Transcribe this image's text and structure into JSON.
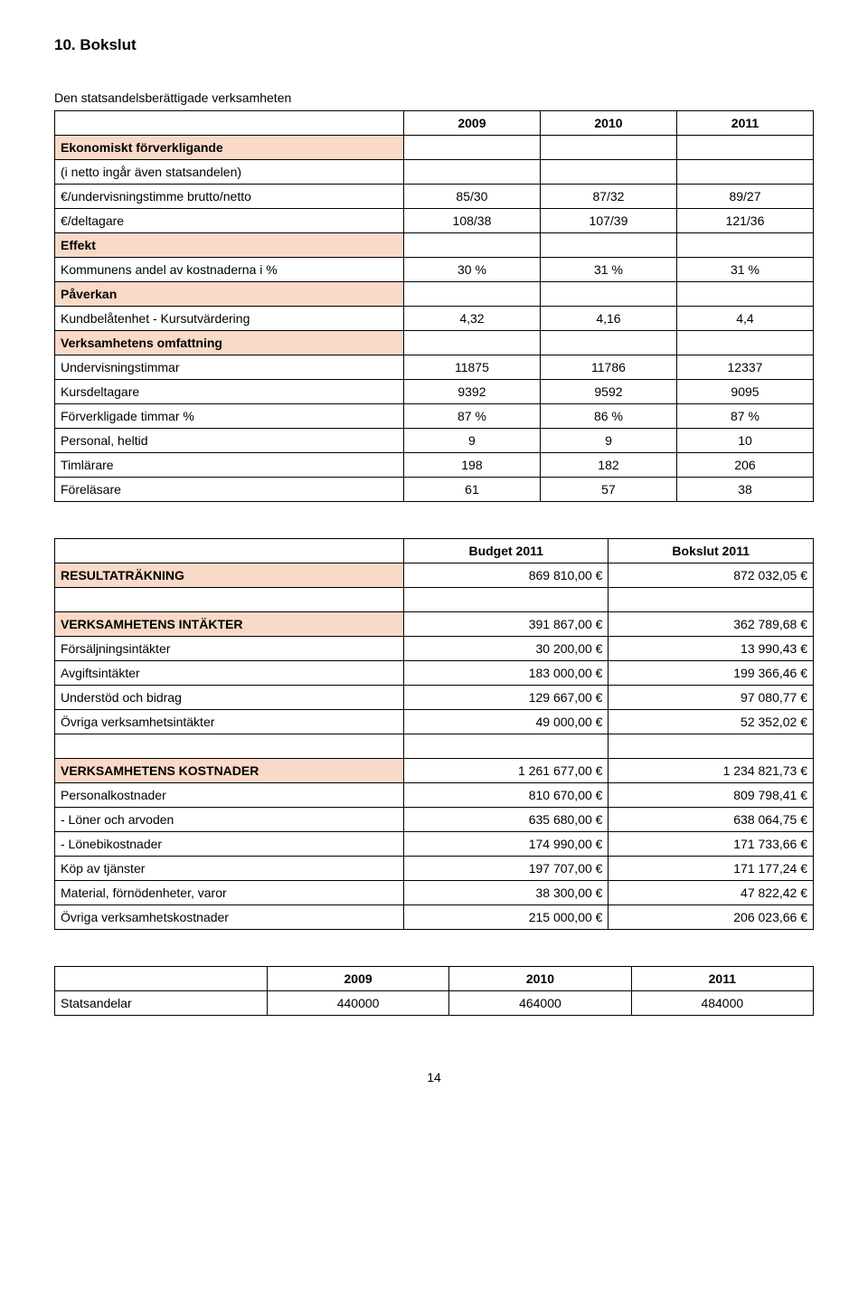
{
  "heading": "10. Bokslut",
  "intro": "Den statsandelsberättigade verksamheten",
  "table1": {
    "years": [
      "2009",
      "2010",
      "2011"
    ],
    "rows": [
      {
        "label": "Ekonomiskt förverkligande",
        "vals": [
          "",
          "",
          ""
        ],
        "bold": true,
        "shade": true
      },
      {
        "label": " (i netto ingår även statsandelen)",
        "vals": [
          "",
          "",
          ""
        ],
        "bold": false,
        "shade": false
      },
      {
        "label": "€/undervisningstimme brutto/netto",
        "vals": [
          "85/30",
          "87/32",
          "89/27"
        ],
        "bold": false,
        "shade": false
      },
      {
        "label": "€/deltagare",
        "vals": [
          "108/38",
          "107/39",
          "121/36"
        ],
        "bold": false,
        "shade": false
      },
      {
        "label": "Effekt",
        "vals": [
          "",
          "",
          ""
        ],
        "bold": true,
        "shade": true
      },
      {
        "label": "Kommunens andel av kostnaderna i %",
        "vals": [
          "30 %",
          "31 %",
          "31 %"
        ],
        "bold": false,
        "shade": false
      },
      {
        "label": "Påverkan",
        "vals": [
          "",
          "",
          ""
        ],
        "bold": true,
        "shade": true
      },
      {
        "label": "Kundbelåtenhet - Kursutvärdering",
        "vals": [
          "4,32",
          "4,16",
          "4,4"
        ],
        "bold": false,
        "shade": false
      },
      {
        "label": "Verksamhetens omfattning",
        "vals": [
          "",
          "",
          ""
        ],
        "bold": true,
        "shade": true
      },
      {
        "label": "Undervisningstimmar",
        "vals": [
          "11875",
          "11786",
          "12337"
        ],
        "bold": false,
        "shade": false
      },
      {
        "label": "Kursdeltagare",
        "vals": [
          "9392",
          "9592",
          "9095"
        ],
        "bold": false,
        "shade": false
      },
      {
        "label": "Förverkligade timmar %",
        "vals": [
          "87 %",
          "86 %",
          "87 %"
        ],
        "bold": false,
        "shade": false
      },
      {
        "label": "Personal, heltid",
        "vals": [
          "9",
          "9",
          "10"
        ],
        "bold": false,
        "shade": false
      },
      {
        "label": "Timlärare",
        "vals": [
          "198",
          "182",
          "206"
        ],
        "bold": false,
        "shade": false
      },
      {
        "label": "Föreläsare",
        "vals": [
          "61",
          "57",
          "38"
        ],
        "bold": false,
        "shade": false
      }
    ]
  },
  "table2": {
    "head": [
      "Budget 2011",
      "Bokslut 2011"
    ],
    "rows": [
      {
        "label": "RESULTATRÄKNING",
        "vals": [
          "869 810,00 €",
          "872 032,05 €"
        ],
        "bold": true,
        "shade": true
      },
      {
        "label": "",
        "vals": [
          "",
          ""
        ],
        "bold": false,
        "shade": false
      },
      {
        "label": "VERKSAMHETENS INTÄKTER",
        "vals": [
          "391 867,00 €",
          "362 789,68 €"
        ],
        "bold": true,
        "shade": true
      },
      {
        "label": "Försäljningsintäkter",
        "vals": [
          "30 200,00 €",
          "13 990,43 €"
        ],
        "bold": false,
        "shade": false
      },
      {
        "label": "Avgiftsintäkter",
        "vals": [
          "183 000,00 €",
          "199 366,46 €"
        ],
        "bold": false,
        "shade": false
      },
      {
        "label": "Understöd och bidrag",
        "vals": [
          "129 667,00 €",
          "97 080,77 €"
        ],
        "bold": false,
        "shade": false
      },
      {
        "label": "Övriga verksamhetsintäkter",
        "vals": [
          "49 000,00 €",
          "52 352,02 €"
        ],
        "bold": false,
        "shade": false
      },
      {
        "label": "",
        "vals": [
          "",
          ""
        ],
        "bold": false,
        "shade": false
      },
      {
        "label": "VERKSAMHETENS KOSTNADER",
        "vals": [
          "1 261 677,00 €",
          "1 234 821,73 €"
        ],
        "bold": true,
        "shade": true
      },
      {
        "label": "Personalkostnader",
        "vals": [
          "810 670,00 €",
          "809 798,41 €"
        ],
        "bold": false,
        "shade": false
      },
      {
        "label": "- Löner och arvoden",
        "vals": [
          "635 680,00 €",
          "638 064,75 €"
        ],
        "bold": false,
        "shade": false
      },
      {
        "label": "- Lönebikostnader",
        "vals": [
          "174 990,00 €",
          "171 733,66 €"
        ],
        "bold": false,
        "shade": false
      },
      {
        "label": "Köp av tjänster",
        "vals": [
          "197 707,00 €",
          "171 177,24 €"
        ],
        "bold": false,
        "shade": false
      },
      {
        "label": "Material, förnödenheter, varor",
        "vals": [
          "38 300,00 €",
          "47 822,42 €"
        ],
        "bold": false,
        "shade": false
      },
      {
        "label": "Övriga verksamhetskostnader",
        "vals": [
          "215 000,00 €",
          "206 023,66 €"
        ],
        "bold": false,
        "shade": false
      }
    ]
  },
  "table3": {
    "head": [
      "2009",
      "2010",
      "2011"
    ],
    "row": {
      "label": "Statsandelar",
      "vals": [
        "440000",
        "464000",
        "484000"
      ]
    }
  },
  "page_number": "14"
}
